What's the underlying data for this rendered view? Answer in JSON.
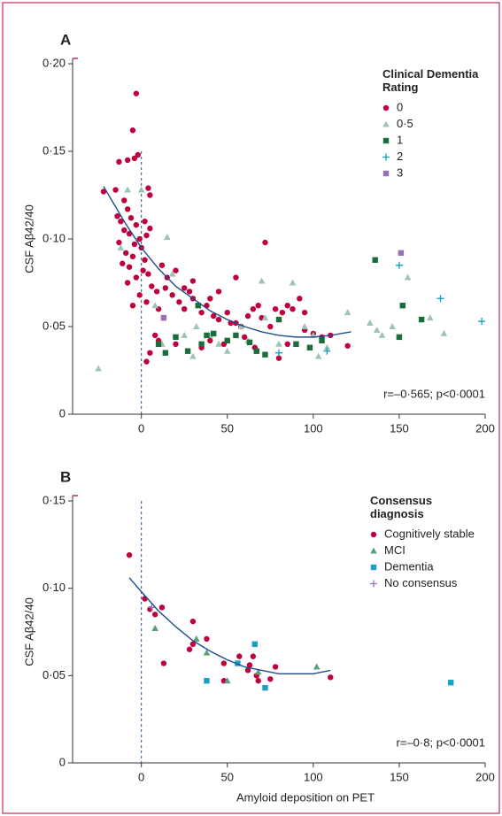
{
  "chart_data": [
    {
      "type": "scatter",
      "panel": "A",
      "ylabel": "CSF Aβ42/40",
      "legend_title": "Clinical Dementia Rating",
      "legend": "upper right",
      "annotation": "r=–0·565; p<0·0001",
      "xlim": [
        -40,
        200
      ],
      "xticks": [
        0,
        50,
        100,
        150,
        200
      ],
      "ylim": [
        0,
        0.2
      ],
      "yticks": [
        0,
        {
          "value": 0.05,
          "label": "0·05"
        },
        {
          "value": 0.1,
          "label": "0·10"
        },
        {
          "value": 0.15,
          "label": "0·15"
        },
        {
          "value": 0.2,
          "label": "0·20"
        }
      ],
      "reference_line": {
        "x": 0,
        "y": [
          0,
          0.15
        ]
      },
      "fit": {
        "color": "#1f4e8c",
        "x": [
          -22,
          -10,
          0,
          10,
          20,
          30,
          40,
          50,
          60,
          70,
          80,
          90,
          100,
          110,
          122
        ],
        "values": [
          0.13,
          0.11,
          0.095,
          0.083,
          0.073,
          0.066,
          0.059,
          0.054,
          0.05,
          0.047,
          0.045,
          0.044,
          0.044,
          0.045,
          0.047
        ]
      },
      "series": [
        {
          "name": "0",
          "color": "#c0003c",
          "marker": "circle",
          "x": [
            -3,
            -5,
            -2,
            -4,
            -13,
            -8,
            4,
            -22,
            -15,
            -10,
            5,
            -8,
            -14,
            -12,
            -6,
            -3,
            2,
            -10,
            -7,
            -1,
            3,
            5,
            -13,
            -4,
            0,
            -9,
            -5,
            2,
            -11,
            -7,
            1,
            4,
            -3,
            -8,
            6,
            9,
            -1,
            3,
            -5,
            10,
            14,
            18,
            22,
            25,
            28,
            30,
            35,
            38,
            42,
            45,
            50,
            55,
            58,
            62,
            65,
            68,
            72,
            70,
            75,
            78,
            82,
            85,
            88,
            92,
            55,
            45,
            40,
            30,
            20,
            12,
            15,
            25,
            95,
            100,
            105,
            110,
            120,
            80,
            60,
            48,
            35,
            20,
            10,
            5,
            3,
            8,
            40,
            66,
            85,
            52,
            95
          ],
          "values": [
            0.183,
            0.162,
            0.148,
            0.146,
            0.144,
            0.145,
            0.129,
            0.127,
            0.128,
            0.122,
            0.125,
            0.117,
            0.113,
            0.11,
            0.112,
            0.108,
            0.11,
            0.105,
            0.103,
            0.1,
            0.102,
            0.106,
            0.098,
            0.097,
            0.095,
            0.092,
            0.09,
            0.088,
            0.086,
            0.084,
            0.082,
            0.08,
            0.078,
            0.075,
            0.073,
            0.07,
            0.068,
            0.064,
            0.062,
            0.06,
            0.072,
            0.068,
            0.064,
            0.06,
            0.07,
            0.066,
            0.058,
            0.062,
            0.056,
            0.054,
            0.058,
            0.052,
            0.05,
            0.056,
            0.06,
            0.062,
            0.098,
            0.055,
            0.05,
            0.06,
            0.058,
            0.062,
            0.06,
            0.066,
            0.078,
            0.07,
            0.066,
            0.076,
            0.082,
            0.085,
            0.078,
            0.072,
            0.048,
            0.046,
            0.044,
            0.045,
            0.039,
            0.032,
            0.044,
            0.04,
            0.038,
            0.04,
            0.042,
            0.035,
            0.03,
            0.045,
            0.042,
            0.038,
            0.04,
            0.052,
            0.058
          ]
        },
        {
          "name": "0·5",
          "color": "#9ec4b4",
          "marker": "triangle",
          "x": [
            -25,
            -12,
            -8,
            0,
            15,
            8,
            18,
            25,
            32,
            40,
            45,
            58,
            70,
            72,
            88,
            95,
            100,
            103,
            108,
            120,
            133,
            137,
            140,
            146,
            155,
            168,
            176,
            80,
            62,
            50,
            30,
            12
          ],
          "values": [
            0.026,
            0.095,
            0.128,
            0.128,
            0.101,
            0.062,
            0.08,
            0.045,
            0.05,
            0.045,
            0.04,
            0.05,
            0.076,
            0.055,
            0.075,
            0.05,
            0.045,
            0.033,
            0.038,
            0.058,
            0.052,
            0.048,
            0.045,
            0.05,
            0.078,
            0.055,
            0.046,
            0.04,
            0.042,
            0.036,
            0.033,
            0.04
          ]
        },
        {
          "name": "1",
          "color": "#1a6e3c",
          "marker": "square",
          "x": [
            10,
            14,
            20,
            27,
            33,
            35,
            38,
            42,
            50,
            55,
            63,
            67,
            72,
            80,
            90,
            98,
            105,
            136,
            152,
            150,
            163
          ],
          "values": [
            0.04,
            0.035,
            0.044,
            0.036,
            0.062,
            0.04,
            0.045,
            0.046,
            0.042,
            0.045,
            0.041,
            0.036,
            0.034,
            0.054,
            0.04,
            0.038,
            0.042,
            0.088,
            0.062,
            0.044,
            0.054
          ]
        },
        {
          "name": "2",
          "color": "#0fa0c8",
          "marker": "plus",
          "x": [
            80,
            108,
            150,
            174,
            198
          ],
          "values": [
            0.035,
            0.036,
            0.085,
            0.066,
            0.053
          ]
        },
        {
          "name": "3",
          "color": "#9b6fb5",
          "marker": "square",
          "x": [
            13,
            151
          ],
          "values": [
            0.055,
            0.092
          ]
        }
      ]
    },
    {
      "type": "scatter",
      "panel": "B",
      "ylabel": "CSF Aβ42/40",
      "xlabel": "Amyloid deposition on PET",
      "legend_title": "Consensus diagnosis",
      "legend": "upper right",
      "annotation": "r=–0·8; p<0·0001",
      "xlim": [
        -40,
        200
      ],
      "xticks": [
        0,
        50,
        100,
        150,
        200
      ],
      "ylim": [
        0,
        0.15
      ],
      "yticks": [
        0,
        {
          "value": 0.05,
          "label": "0·05"
        },
        {
          "value": 0.1,
          "label": "0·10"
        },
        {
          "value": 0.15,
          "label": "0·15"
        }
      ],
      "reference_line": {
        "x": 0,
        "y": [
          0,
          0.15
        ]
      },
      "fit": {
        "color": "#1f4e8c",
        "x": [
          -7,
          0,
          10,
          20,
          30,
          40,
          50,
          60,
          70,
          80,
          90,
          100,
          110
        ],
        "values": [
          0.106,
          0.098,
          0.087,
          0.078,
          0.07,
          0.064,
          0.059,
          0.055,
          0.053,
          0.051,
          0.051,
          0.051,
          0.053
        ]
      },
      "series": [
        {
          "name": "Cognitively stable",
          "color": "#c0003c",
          "marker": "circle",
          "x": [
            -7,
            2,
            5,
            8,
            12,
            13,
            28,
            30,
            30,
            38,
            48,
            48,
            57,
            62,
            63,
            65,
            67,
            68,
            75,
            78,
            110
          ],
          "values": [
            0.119,
            0.094,
            0.088,
            0.085,
            0.089,
            0.057,
            0.065,
            0.081,
            0.068,
            0.071,
            0.057,
            0.047,
            0.061,
            0.053,
            0.056,
            0.061,
            0.05,
            0.047,
            0.048,
            0.055,
            0.049
          ]
        },
        {
          "name": "MCI",
          "color": "#5a9e7a",
          "marker": "triangle",
          "x": [
            8,
            32,
            38,
            50,
            68,
            102
          ],
          "values": [
            0.077,
            0.071,
            0.063,
            0.047,
            0.052,
            0.055
          ]
        },
        {
          "name": "Dementia",
          "color": "#1aa0c0",
          "marker": "square",
          "x": [
            38,
            56,
            66,
            72,
            180
          ],
          "values": [
            0.047,
            0.057,
            0.068,
            0.043,
            0.046
          ]
        },
        {
          "name": "No consensus",
          "color": "#9b6fb5",
          "marker": "plus",
          "x": [
            6
          ],
          "values": [
            0.089
          ]
        }
      ]
    }
  ]
}
